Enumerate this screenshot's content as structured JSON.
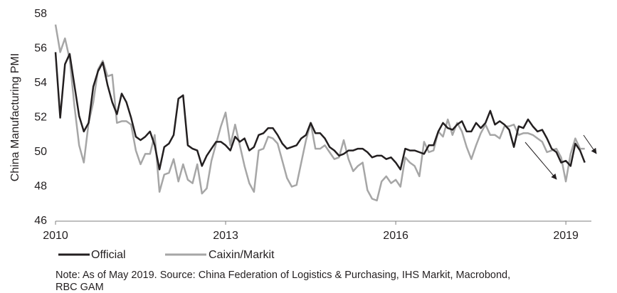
{
  "chart_data": {
    "type": "line",
    "y_label": "China Manufacturing PMI",
    "note": [
      "Note: As of May 2019. Source: China Federation of Logistics & Purchasing, IHS Markit, Macrobond,",
      "RBC GAM"
    ],
    "xlim": [
      2010,
      2019.45
    ],
    "xticks": [
      2010,
      2013,
      2016,
      2019
    ],
    "ylim": [
      46,
      58
    ],
    "yticks": [
      46,
      48,
      50,
      52,
      54,
      56,
      58
    ],
    "grid": false,
    "x": [
      2010,
      2010.083,
      2010.167,
      2010.25,
      2010.333,
      2010.417,
      2010.5,
      2010.583,
      2010.667,
      2010.75,
      2010.833,
      2010.917,
      2011,
      2011.083,
      2011.167,
      2011.25,
      2011.333,
      2011.417,
      2011.5,
      2011.583,
      2011.667,
      2011.75,
      2011.833,
      2011.917,
      2012,
      2012.083,
      2012.167,
      2012.25,
      2012.333,
      2012.417,
      2012.5,
      2012.583,
      2012.667,
      2012.75,
      2012.833,
      2012.917,
      2013,
      2013.083,
      2013.167,
      2013.25,
      2013.333,
      2013.417,
      2013.5,
      2013.583,
      2013.667,
      2013.75,
      2013.833,
      2013.917,
      2014,
      2014.083,
      2014.167,
      2014.25,
      2014.333,
      2014.417,
      2014.5,
      2014.583,
      2014.667,
      2014.75,
      2014.833,
      2014.917,
      2015,
      2015.083,
      2015.167,
      2015.25,
      2015.333,
      2015.417,
      2015.5,
      2015.583,
      2015.667,
      2015.75,
      2015.833,
      2015.917,
      2016,
      2016.083,
      2016.167,
      2016.25,
      2016.333,
      2016.417,
      2016.5,
      2016.583,
      2016.667,
      2016.75,
      2016.833,
      2016.917,
      2017,
      2017.083,
      2017.167,
      2017.25,
      2017.333,
      2017.417,
      2017.5,
      2017.583,
      2017.667,
      2017.75,
      2017.833,
      2017.917,
      2018,
      2018.083,
      2018.167,
      2018.25,
      2018.333,
      2018.417,
      2018.5,
      2018.583,
      2018.667,
      2018.75,
      2018.833,
      2018.917,
      2019,
      2019.083,
      2019.167,
      2019.25,
      2019.333
    ],
    "series": [
      {
        "name": "Official",
        "color": "#231f20",
        "values": [
          55.8,
          52.0,
          55.1,
          55.7,
          53.9,
          52.1,
          51.2,
          51.7,
          53.8,
          54.7,
          55.2,
          53.9,
          52.9,
          52.2,
          53.4,
          52.9,
          52.0,
          50.9,
          50.7,
          50.9,
          51.2,
          50.4,
          49.0,
          50.3,
          50.5,
          51.0,
          53.1,
          53.3,
          50.4,
          50.2,
          50.1,
          49.2,
          49.8,
          50.2,
          50.6,
          50.6,
          50.4,
          50.1,
          50.9,
          50.6,
          50.8,
          50.1,
          50.3,
          51.0,
          51.1,
          51.4,
          51.4,
          51.0,
          50.5,
          50.2,
          50.3,
          50.4,
          50.8,
          51.0,
          51.7,
          51.1,
          51.1,
          50.8,
          50.3,
          50.1,
          49.8,
          49.9,
          50.1,
          50.1,
          50.2,
          50.2,
          50.0,
          49.7,
          49.8,
          49.8,
          49.6,
          49.7,
          49.4,
          49.0,
          50.2,
          50.1,
          50.1,
          50.0,
          49.9,
          50.4,
          50.4,
          51.2,
          51.7,
          51.4,
          51.3,
          51.6,
          51.8,
          51.2,
          51.2,
          51.7,
          51.4,
          51.7,
          52.4,
          51.6,
          51.8,
          51.6,
          51.3,
          50.3,
          51.5,
          51.4,
          51.9,
          51.5,
          51.2,
          51.3,
          50.8,
          50.2,
          50.0,
          49.4,
          49.5,
          49.2,
          50.5,
          50.1,
          49.4
        ]
      },
      {
        "name": "Caixin/Markit",
        "color": "#a6a6a6",
        "values": [
          57.4,
          55.8,
          56.6,
          55.4,
          52.7,
          50.4,
          49.4,
          51.7,
          52.9,
          54.8,
          55.3,
          54.4,
          54.5,
          51.7,
          51.8,
          51.8,
          51.6,
          50.1,
          49.3,
          49.9,
          49.9,
          51.0,
          47.7,
          48.7,
          48.8,
          49.6,
          48.3,
          49.3,
          48.4,
          48.2,
          49.3,
          47.6,
          47.9,
          49.5,
          50.5,
          51.5,
          52.3,
          50.4,
          51.6,
          50.4,
          49.2,
          48.2,
          47.7,
          50.1,
          50.2,
          50.9,
          50.8,
          50.5,
          49.5,
          48.5,
          48.0,
          48.1,
          49.4,
          50.7,
          51.7,
          50.2,
          50.2,
          50.4,
          50.0,
          49.6,
          49.7,
          50.7,
          49.6,
          48.9,
          49.2,
          49.4,
          47.8,
          47.3,
          47.2,
          48.3,
          48.6,
          48.2,
          48.4,
          48.0,
          49.7,
          49.4,
          49.2,
          48.6,
          50.6,
          50.0,
          50.1,
          51.2,
          50.9,
          51.9,
          51.0,
          51.7,
          51.2,
          50.3,
          49.6,
          50.4,
          51.1,
          51.6,
          51.0,
          51.0,
          50.8,
          51.5,
          51.5,
          51.6,
          51.0,
          51.1,
          51.1,
          51.0,
          50.8,
          50.6,
          50.0,
          50.1,
          50.2,
          49.7,
          48.3,
          49.9,
          50.8,
          50.2,
          50.2
        ]
      }
    ]
  }
}
